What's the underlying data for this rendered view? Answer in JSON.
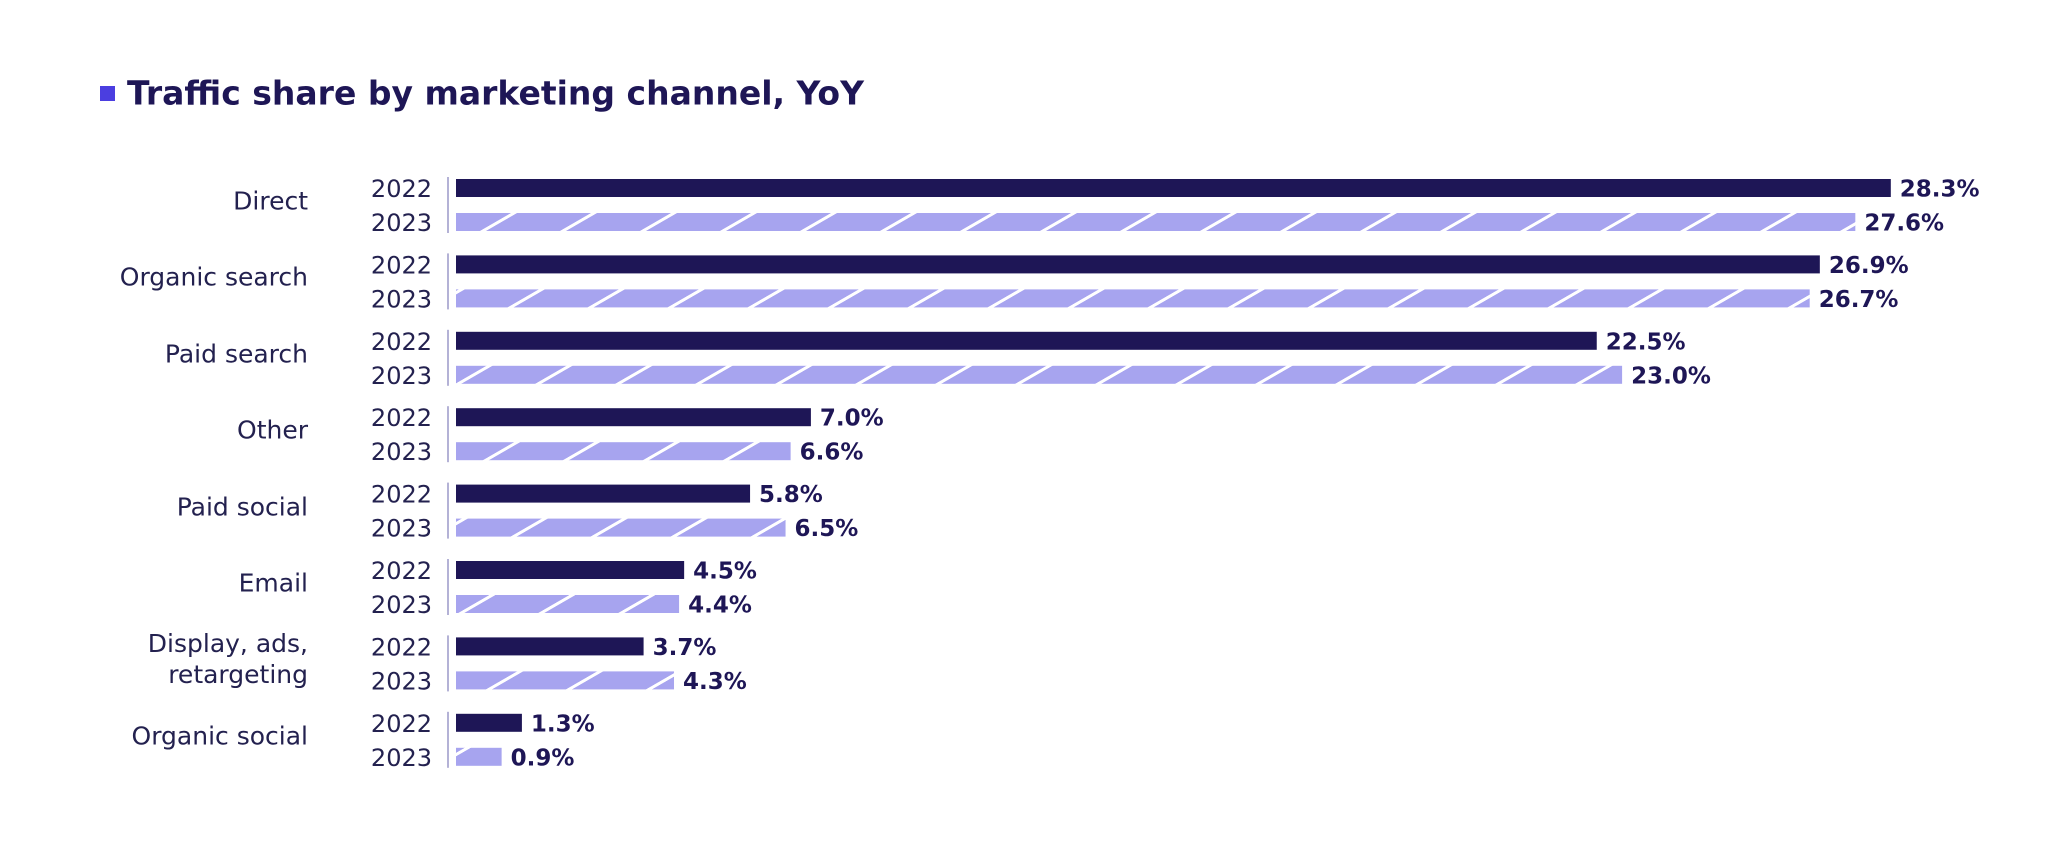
{
  "chart_data": {
    "type": "bar",
    "orientation": "horizontal",
    "title": "Traffic share by marketing channel, YoY",
    "categories": [
      "Direct",
      "Organic search",
      "Paid search",
      "Other",
      "Paid social",
      "Email",
      "Display, ads, retargeting",
      "Organic social"
    ],
    "series": [
      {
        "name": "2022",
        "color": "#1e1656",
        "values": [
          28.3,
          26.9,
          22.5,
          7.0,
          5.8,
          4.5,
          3.7,
          1.3
        ],
        "value_labels": [
          "28.3%",
          "26.9%",
          "22.5%",
          "7.0%",
          "5.8%",
          "4.5%",
          "3.7%",
          "1.3%"
        ]
      },
      {
        "name": "2023",
        "color": "#a7a4ef",
        "values": [
          27.6,
          26.7,
          23.0,
          6.6,
          6.5,
          4.4,
          4.3,
          0.9
        ],
        "value_labels": [
          "27.6%",
          "26.7%",
          "23.0%",
          "6.6%",
          "6.5%",
          "4.4%",
          "4.3%",
          "0.9%"
        ]
      }
    ]
  }
}
